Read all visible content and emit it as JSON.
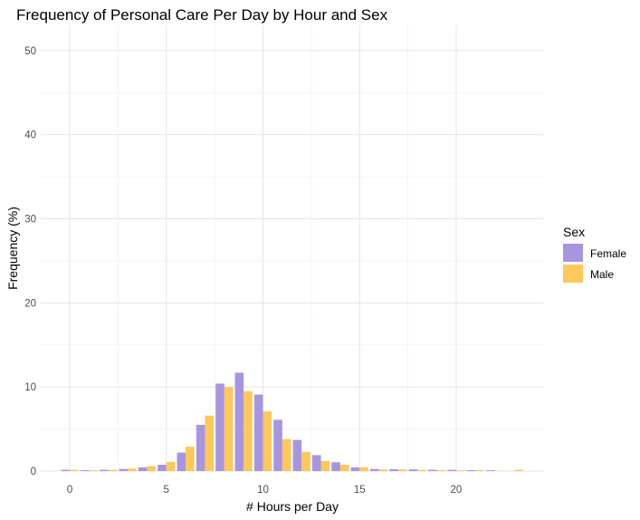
{
  "chart_data": {
    "type": "bar",
    "title": "Frequency of Personal Care Per Day by Hour and Sex",
    "xlabel": "# Hours per Day",
    "ylabel": "Frequency (%)",
    "x_ticks": [
      "0",
      "5",
      "10",
      "15",
      "20"
    ],
    "y_ticks": [
      "0",
      "10",
      "20",
      "30",
      "40",
      "50"
    ],
    "xlim": [
      -1.5,
      24.5
    ],
    "ylim": [
      0,
      53
    ],
    "grid": true,
    "legend": {
      "title": "Sex",
      "position": "right"
    },
    "x": [
      0,
      1,
      2,
      3,
      4,
      5,
      6,
      7,
      8,
      9,
      10,
      11,
      12,
      13,
      14,
      15,
      16,
      17,
      18,
      19,
      20,
      21,
      22,
      23
    ],
    "series": [
      {
        "name": "Female",
        "color": "#a895e0",
        "values": [
          0.15,
          0.1,
          0.15,
          0.25,
          0.45,
          0.75,
          2.2,
          5.5,
          10.4,
          11.7,
          9.1,
          6.1,
          3.7,
          1.9,
          1.05,
          0.45,
          0.25,
          0.22,
          0.2,
          0.15,
          0.15,
          0.12,
          0.1,
          0
        ]
      },
      {
        "name": "Male",
        "color": "#ffc85a",
        "values": [
          0.15,
          0.1,
          0.15,
          0.3,
          0.6,
          1.1,
          2.9,
          6.6,
          10.0,
          9.5,
          7.1,
          3.8,
          2.3,
          1.2,
          0.75,
          0.45,
          0.2,
          0.18,
          0.15,
          0.12,
          0.1,
          0.12,
          0.05,
          0.15
        ]
      }
    ]
  }
}
